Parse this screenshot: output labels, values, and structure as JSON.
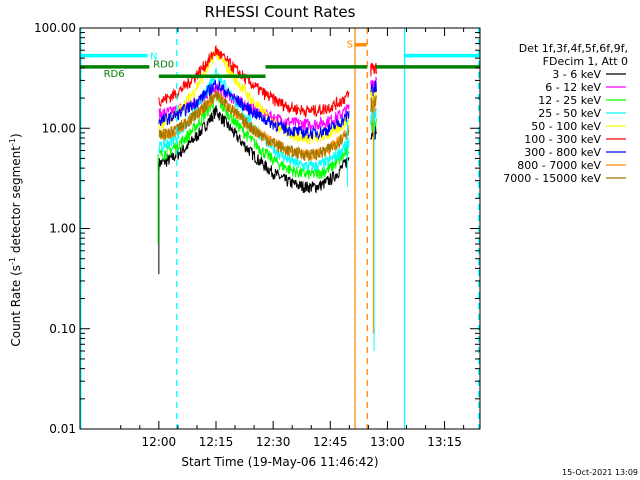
{
  "chart_data": {
    "type": "line",
    "title": "RHESSI Count Rates",
    "xlabel": "Start Time (19-May-06 11:46:42)",
    "ylabel_main": "Count Rate (s",
    "ylabel_sup": "-1",
    "ylabel_rest": " detector segment",
    "ylabel_end": ")",
    "ylim": [
      0.01,
      100
    ],
    "yscale": "log",
    "xlim_min": [
      -20.7,
      84.3
    ],
    "x_ticks": [
      {
        "min": 0,
        "label": "12:00"
      },
      {
        "min": 15,
        "label": "12:15"
      },
      {
        "min": 30,
        "label": "12:30"
      },
      {
        "min": 45,
        "label": "12:45"
      },
      {
        "min": 60,
        "label": "13:00"
      },
      {
        "min": 75,
        "label": "13:15"
      }
    ],
    "y_ticks": [
      {
        "value": 100,
        "label": "100.00"
      },
      {
        "value": 10,
        "label": "10.00"
      },
      {
        "value": 1,
        "label": "1.00"
      },
      {
        "value": 0.1,
        "label": "0.10"
      },
      {
        "value": 0.01,
        "label": "0.01"
      }
    ],
    "legend_header": [
      "Det 1f,3f,4f,5f,6f,9f,",
      "FDecim 1, Att 0"
    ],
    "series": [
      {
        "name": "3 - 6 keV",
        "color": "#000000",
        "peak": 15,
        "base": 2.6,
        "pre": 4.5
      },
      {
        "name": "6 - 12 keV",
        "color": "#ff00ff",
        "peak": 25,
        "base": 11,
        "pre": 14
      },
      {
        "name": "12 - 25 keV",
        "color": "#00ff00",
        "peak": 20,
        "base": 3.5,
        "pre": 5.5
      },
      {
        "name": "25 - 50 keV",
        "color": "#00ffff",
        "peak": 37,
        "base": 4.2,
        "pre": 6.5
      },
      {
        "name": "50 - 100 keV",
        "color": "#ffff00",
        "peak": 58,
        "base": 8,
        "pre": 11
      },
      {
        "name": "100 - 300 keV",
        "color": "#ff0000",
        "peak": 60,
        "base": 15,
        "pre": 19
      },
      {
        "name": "300 - 800 keV",
        "color": "#0000ff",
        "peak": 28,
        "base": 9,
        "pre": 12
      },
      {
        "name": "800 - 7000 keV",
        "color": "#ff8c00",
        "peak": 22,
        "base": 5.5,
        "pre": 8.5
      },
      {
        "name": "7000 - 15000 keV",
        "color": "#a07800",
        "peak": 22,
        "base": 5.5,
        "pre": 8.5
      }
    ],
    "flag_labels": {
      "n": "N",
      "rd0": "RD0",
      "rd6": "RD6",
      "s": "S"
    },
    "flag_bars": [
      {
        "name": "saa-bar-1",
        "color": "#00ffff",
        "x0": -20.7,
        "x1": -3,
        "y": 53
      },
      {
        "name": "saa-bar-2",
        "color": "#00ffff",
        "x0": 64.5,
        "x1": 84.3,
        "y": 53
      },
      {
        "name": "rd0-bar-1",
        "color": "#008000",
        "x0": -20.7,
        "x1": -2.5,
        "y": 41
      },
      {
        "name": "rd0-bar-2",
        "color": "#008000",
        "x0": 28,
        "x1": 54.7,
        "y": 41
      },
      {
        "name": "rd0-bar-3",
        "color": "#008000",
        "x0": 57,
        "x1": 84.3,
        "y": 41
      },
      {
        "name": "rd6-bar",
        "color": "#008000",
        "x0": 0,
        "x1": 28,
        "y": 33
      },
      {
        "name": "s-bar",
        "color": "#ff8c00",
        "x0": 51.5,
        "x1": 54.5,
        "y": 68
      }
    ],
    "vlines": [
      {
        "name": "vline-left-solid",
        "color": "#00ffff",
        "x": -20.5,
        "dash": false
      },
      {
        "name": "vline-left-dash",
        "color": "#00ffff",
        "x": 4.7,
        "dash": true
      },
      {
        "name": "vline-orange-solid",
        "color": "#ff8c00",
        "x": 51.5,
        "dash": false
      },
      {
        "name": "vline-orange-dash",
        "color": "#ff8c00",
        "x": 54.7,
        "dash": true
      },
      {
        "name": "vline-right-solid",
        "color": "#00ffff",
        "x": 64.5,
        "dash": false
      },
      {
        "name": "vline-right-dash",
        "color": "#00ffff",
        "x": 84,
        "dash": true
      }
    ]
  },
  "footer": {
    "timestamp": "15-Oct-2021 13:09"
  }
}
